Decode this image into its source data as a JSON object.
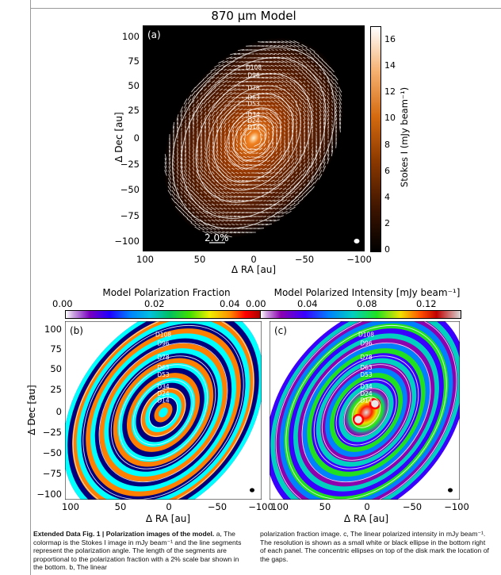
{
  "figure_label": "Extended Data Fig. 1",
  "figure_title": "Polarization images of the model.",
  "caption_left": "a, The colormap is the Stokes I image in mJy beam⁻¹ and the line segments represent the polarization angle. The length of the segments are proportional to the polarization fraction with a 2% scale bar shown in the bottom. b, The linear",
  "caption_right": "polarization fraction image. c, The linear polarized intensity in mJy beam⁻¹. The resolution is shown as a small white or black ellipse in the bottom right of each panel. The concentric ellipses on top of the disk mark the location of the gaps.",
  "panel_a": {
    "title": "870 μm Model",
    "label": "(a)",
    "xlabel": "Δ RA [au]",
    "ylabel": "Δ Dec [au]",
    "scale_bar": "2.0%",
    "xticks": [
      "100",
      "50",
      "0",
      "−50",
      "−100"
    ],
    "yticks": [
      "100",
      "75",
      "50",
      "25",
      "0",
      "−25",
      "−50",
      "−75",
      "−100"
    ],
    "colorbar_label": "Stokes I (mJy beam⁻¹)",
    "colorbar_ticks": [
      "0",
      "2",
      "4",
      "6",
      "8",
      "10",
      "12",
      "14",
      "16"
    ],
    "colorbar_range": [
      0,
      17
    ],
    "colormap": [
      "#000000",
      "#3a1300",
      "#8a3800",
      "#d46a10",
      "#f5b070",
      "#ffffff"
    ]
  },
  "panel_b": {
    "label": "(b)",
    "colorbar_label": "Model Polarization Fraction",
    "colorbar_ticks": [
      "0.00",
      "0.02",
      "0.04"
    ],
    "colorbar_range": [
      0,
      0.05
    ],
    "xlabel": "Δ RA [au]",
    "ylabel": "Δ Dec [au]",
    "xticks": [
      "100",
      "50",
      "0",
      "−50",
      "−100"
    ],
    "yticks": [
      "100",
      "75",
      "50",
      "25",
      "0",
      "−25",
      "−50",
      "−75",
      "−100"
    ]
  },
  "panel_c": {
    "label": "(c)",
    "colorbar_label": "Model Polarized Intensity [mJy beam⁻¹]",
    "colorbar_ticks": [
      "0.00",
      "0.04",
      "0.08",
      "0.12"
    ],
    "colorbar_range": [
      0,
      0.14
    ],
    "xlabel": "Δ RA [au]",
    "xticks": [
      "100",
      "50",
      "0",
      "−50",
      "−100"
    ]
  },
  "gaps": [
    "D14",
    "D24",
    "D34",
    "D53",
    "D63",
    "D78",
    "D96",
    "D108"
  ],
  "colors": {
    "ring_lines": "#ffffff",
    "vectors": "#ffffff",
    "jet": [
      "#00007f",
      "#0000ff",
      "#007fff",
      "#00ffff",
      "#7fff7f",
      "#ffff00",
      "#ff7f00",
      "#ff0000",
      "#7f0000"
    ],
    "purple_map": [
      "#ffffff",
      "#8c00b0",
      "#3a00ff",
      "#0080ff",
      "#00d0c0",
      "#20e020",
      "#f0e000",
      "#ff5000",
      "#c00000",
      "#d8d8d8"
    ]
  }
}
